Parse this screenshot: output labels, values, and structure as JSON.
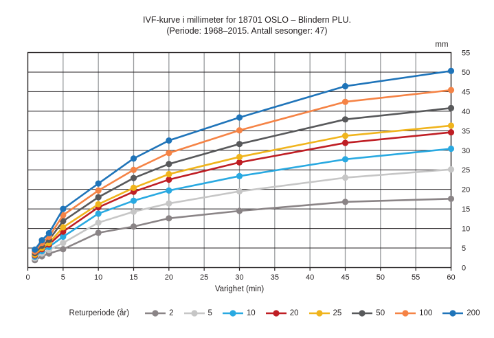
{
  "title": {
    "line1": "IVF-kurve i millimeter for 18701 OSLO – Blindern PLU.",
    "line2": "(Periode: 1968–2015. Antall sesonger: 47)"
  },
  "chart_data": {
    "type": "line",
    "x": [
      1,
      2,
      3,
      5,
      10,
      15,
      20,
      30,
      45,
      60
    ],
    "xlabel": "Varighet (min)",
    "y_unit": "mm",
    "xlim": [
      0,
      60
    ],
    "ylim": [
      0,
      55
    ],
    "x_ticks": [
      0,
      5,
      10,
      15,
      20,
      25,
      30,
      35,
      40,
      45,
      50,
      55,
      60
    ],
    "y_ticks": [
      0,
      5,
      10,
      15,
      20,
      25,
      30,
      35,
      40,
      45,
      50,
      55
    ],
    "grid": true,
    "legend_position": "bottom",
    "legend_title": "Returperiode (år)",
    "series": [
      {
        "name": "2",
        "color": "#8a8486",
        "values": [
          1.9,
          2.9,
          3.6,
          4.7,
          8.9,
          10.5,
          12.6,
          14.5,
          16.8,
          17.6
        ]
      },
      {
        "name": "5",
        "color": "#c6c6c6",
        "values": [
          2.4,
          3.6,
          4.5,
          6.3,
          11.5,
          14.3,
          16.4,
          19.5,
          23.0,
          25.1
        ]
      },
      {
        "name": "10",
        "color": "#29a9e1",
        "values": [
          2.8,
          4.2,
          5.3,
          7.9,
          13.8,
          17.1,
          19.7,
          23.4,
          27.7,
          30.4
        ]
      },
      {
        "name": "20",
        "color": "#bf1e24",
        "values": [
          3.1,
          4.7,
          5.9,
          9.2,
          15.4,
          19.4,
          22.5,
          26.9,
          31.9,
          34.6
        ]
      },
      {
        "name": "25",
        "color": "#f0b41c",
        "values": [
          3.3,
          5.0,
          6.3,
          10.3,
          16.2,
          20.4,
          23.9,
          28.3,
          33.7,
          36.3
        ]
      },
      {
        "name": "50",
        "color": "#58595b",
        "values": [
          3.7,
          5.6,
          7.1,
          11.9,
          18.0,
          22.9,
          26.5,
          31.6,
          37.9,
          40.8
        ]
      },
      {
        "name": "100",
        "color": "#f58345",
        "values": [
          4.1,
          6.3,
          7.9,
          13.4,
          19.7,
          25.0,
          29.3,
          35.1,
          42.4,
          45.4
        ]
      },
      {
        "name": "200",
        "color": "#1f74b9",
        "values": [
          4.6,
          7.0,
          8.8,
          15.0,
          21.5,
          27.9,
          32.5,
          38.4,
          46.4,
          50.3
        ]
      }
    ]
  },
  "colors": {
    "text": "#231f20",
    "h_grid": "#231f20",
    "v_grid": "#97999c",
    "border": "#231f20",
    "background": "#ffffff"
  }
}
